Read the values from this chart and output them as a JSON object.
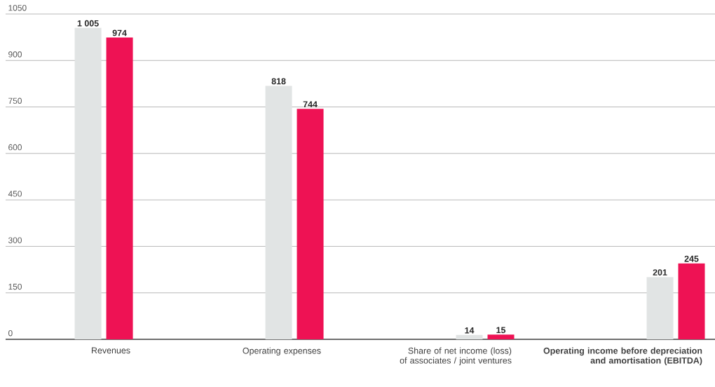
{
  "chart_data": {
    "type": "bar",
    "categories": [
      "Revenues",
      "Operating expenses",
      "Share of net income (loss) of associates / joint ventures",
      "**Operating income before depreciation and amortisation (EBITDA)**"
    ],
    "series": [
      {
        "color": "#e1e4e4",
        "values": [
          1005,
          818,
          14,
          201
        ],
        "value_labels": [
          "1 005",
          "818",
          "14",
          "201"
        ]
      },
      {
        "color": "#ee1254",
        "values": [
          974,
          744,
          15,
          245
        ],
        "value_labels": [
          "974",
          "744",
          "15",
          "245"
        ]
      }
    ],
    "ylim": [
      0,
      1050
    ],
    "yticks": [
      0,
      150,
      300,
      450,
      600,
      750,
      900,
      1050
    ],
    "grid": "y"
  }
}
